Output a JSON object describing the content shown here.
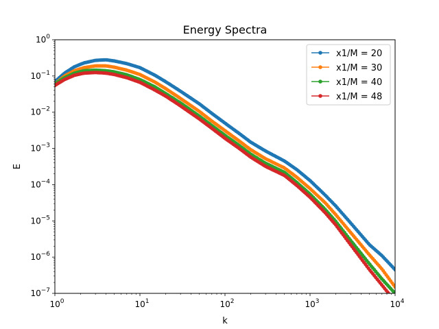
{
  "chart_data": {
    "type": "line",
    "title": "Energy Spectra",
    "xlabel": "k",
    "ylabel": "E",
    "xscale": "log",
    "yscale": "log",
    "xlim": [
      1,
      10000
    ],
    "ylim": [
      1e-07,
      1
    ],
    "grid": false,
    "legend_position": "top-right",
    "x_ticks": [
      {
        "base": "10",
        "exp": "0",
        "value": 1
      },
      {
        "base": "10",
        "exp": "1",
        "value": 10
      },
      {
        "base": "10",
        "exp": "2",
        "value": 100
      },
      {
        "base": "10",
        "exp": "3",
        "value": 1000
      },
      {
        "base": "10",
        "exp": "4",
        "value": 10000
      }
    ],
    "y_ticks": [
      {
        "base": "10",
        "exp": "−7",
        "value": 1e-07
      },
      {
        "base": "10",
        "exp": "−6",
        "value": 1e-06
      },
      {
        "base": "10",
        "exp": "−5",
        "value": 1e-05
      },
      {
        "base": "10",
        "exp": "−4",
        "value": 0.0001
      },
      {
        "base": "10",
        "exp": "−3",
        "value": 0.001
      },
      {
        "base": "10",
        "exp": "−2",
        "value": 0.01
      },
      {
        "base": "10",
        "exp": "−1",
        "value": 0.1
      },
      {
        "base": "10",
        "exp": "0",
        "value": 1
      }
    ],
    "x": [
      1,
      1.3,
      1.7,
      2.2,
      3,
      4,
      5,
      7,
      10,
      15,
      20,
      30,
      50,
      70,
      100,
      150,
      200,
      300,
      500,
      700,
      1000,
      1500,
      2000,
      3000,
      5000,
      7000,
      10000
    ],
    "series": [
      {
        "name": "x1/M = 20",
        "color": "#1f77b4",
        "values": [
          0.07,
          0.12,
          0.18,
          0.23,
          0.27,
          0.28,
          0.26,
          0.22,
          0.17,
          0.105,
          0.07,
          0.038,
          0.017,
          0.0093,
          0.005,
          0.0025,
          0.0015,
          0.00085,
          0.00045,
          0.00026,
          0.00013,
          5.2e-05,
          2.6e-05,
          8.8e-06,
          2.2e-06,
          1.1e-06,
          4.5e-07
        ]
      },
      {
        "name": "x1/M = 30",
        "color": "#ff7f0e",
        "values": [
          0.06,
          0.1,
          0.14,
          0.17,
          0.19,
          0.19,
          0.175,
          0.145,
          0.11,
          0.068,
          0.045,
          0.024,
          0.0105,
          0.0057,
          0.0031,
          0.00155,
          0.00093,
          0.00052,
          0.00029,
          0.00016,
          7.8e-05,
          3.2e-05,
          1.5e-05,
          4.8e-06,
          1.15e-06,
          4.7e-07,
          1.5e-07
        ]
      },
      {
        "name": "x1/M = 40",
        "color": "#2ca02c",
        "values": [
          0.06,
          0.09,
          0.12,
          0.14,
          0.145,
          0.14,
          0.13,
          0.108,
          0.08,
          0.05,
          0.033,
          0.018,
          0.0078,
          0.0043,
          0.0023,
          0.00117,
          0.0007,
          0.00039,
          0.00022,
          0.000115,
          5.5e-05,
          2.1e-05,
          9.8e-06,
          2.9e-06,
          6.5e-07,
          2.5e-07,
          1e-07
        ]
      },
      {
        "name": "x1/M = 48",
        "color": "#d62728",
        "values": [
          0.055,
          0.08,
          0.105,
          0.12,
          0.125,
          0.12,
          0.11,
          0.09,
          0.067,
          0.041,
          0.028,
          0.015,
          0.0065,
          0.0036,
          0.0019,
          0.00097,
          0.00058,
          0.00032,
          0.00018,
          9.5e-05,
          4.5e-05,
          1.7e-05,
          7.8e-06,
          2.2e-06,
          4.5e-07,
          1.7e-07,
          6e-08
        ]
      }
    ]
  }
}
